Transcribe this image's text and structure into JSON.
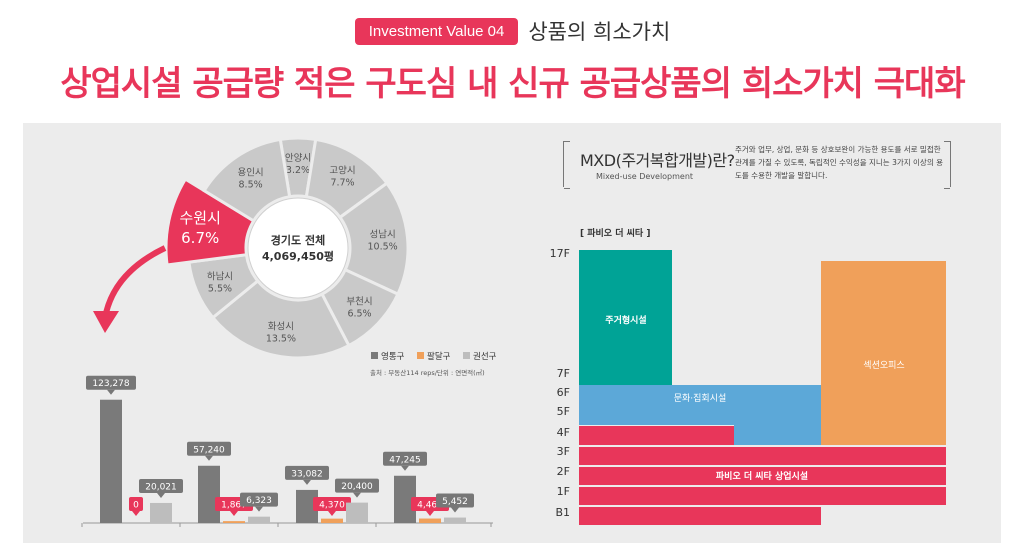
{
  "header": {
    "badge": "Investment Value 04",
    "badge_sub": "상품의 희소가치",
    "title": "상업시설 공급량 적은 구도심 내 신규 공급상품의 희소가치 극대화"
  },
  "colors": {
    "accent": "#e8365a",
    "donut": "#c9c9c9",
    "highlight": "#e8365a",
    "yeongtong": "#7a7a7a",
    "paldal": "#f0a05a",
    "gwonseon": "#bdbdbd",
    "teal": "#00a396",
    "blue": "#5ca8d8",
    "orange": "#f0a05a",
    "pink": "#e8365a"
  },
  "chart_data": [
    {
      "type": "pie",
      "center_title": "경기도 전체",
      "center_value": "4,069,450평",
      "slices": [
        {
          "label": "안양시",
          "value": 3.2,
          "display": "3.2%"
        },
        {
          "label": "고양시",
          "value": 7.7,
          "display": "7.7%"
        },
        {
          "label": "성남시",
          "value": 10.5,
          "display": "10.5%"
        },
        {
          "label": "부천시",
          "value": 6.5,
          "display": "6.5%"
        },
        {
          "label": "화성시",
          "value": 13.5,
          "display": "13.5%"
        },
        {
          "label": "하남시",
          "value": 5.5,
          "display": "5.5%"
        },
        {
          "label": "수원시",
          "value": 6.7,
          "display": "6.7%",
          "highlight": true
        },
        {
          "label": "용인시",
          "value": 8.5,
          "display": "8.5%"
        }
      ]
    },
    {
      "type": "bar",
      "source": "출처 : 부동산114 reps/단위 : 연면적(㎡)",
      "legend_position": "top-right",
      "categories": [
        "",
        "",
        "",
        ""
      ],
      "series": [
        {
          "name": "영통구",
          "values": [
            123278,
            57240,
            33082,
            47245
          ],
          "labels": [
            "123,278",
            "57,240",
            "33,082",
            "47,245"
          ]
        },
        {
          "name": "팔달구",
          "values": [
            0,
            1867,
            4370,
            4464
          ],
          "labels": [
            "0",
            "1,867",
            "4,370",
            "4,464"
          ]
        },
        {
          "name": "권선구",
          "values": [
            20021,
            6323,
            20400,
            5452
          ],
          "labels": [
            "20,021",
            "6,323",
            "20,400",
            "5,452"
          ]
        }
      ],
      "ylim": [
        0,
        130000
      ]
    },
    {
      "type": "table",
      "title": "[ 파비오 더 씨타 ]",
      "floors": [
        "17F",
        "7F",
        "6F",
        "5F",
        "4F",
        "3F",
        "2F",
        "1F",
        "B1"
      ],
      "blocks": [
        {
          "label": "주거형시설",
          "floor_from": "7F",
          "floor_to": "17F",
          "color": "teal"
        },
        {
          "label": "섹션오피스",
          "floor_from": "4F",
          "floor_to": "17F",
          "color": "orange"
        },
        {
          "label": "문화·집회시설",
          "floor_from": "5F",
          "floor_to": "6F",
          "color": "blue"
        },
        {
          "label": "파비오 더 씨타 상업시설",
          "floor_from": "B1",
          "floor_to": "4F",
          "color": "pink"
        }
      ]
    }
  ],
  "mxd": {
    "title": "MXD(주거복합개발)란?",
    "subtitle": "Mixed-use Development",
    "description": "주거와 업무, 상업, 문화 등 상호보완이 가능한 용도를 서로 밀접한 관계를 가질 수 있도록, 독립적인 수익성을 지니는 3가지 이상의 용도를 수용한 개발을 말합니다."
  }
}
